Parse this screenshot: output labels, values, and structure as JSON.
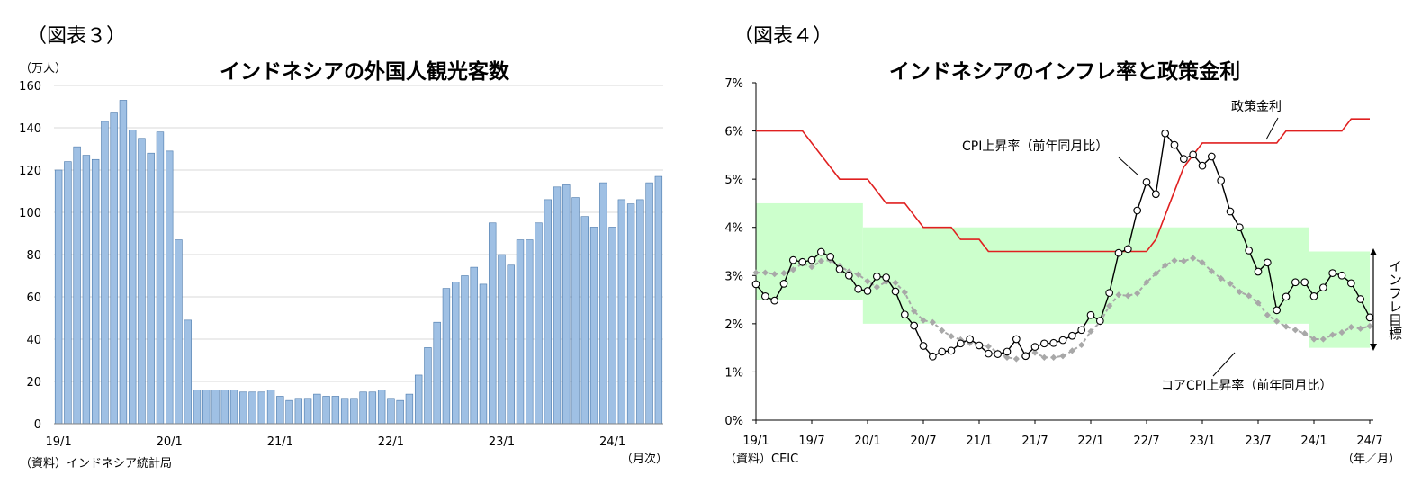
{
  "chart_data": [
    {
      "type": "bar",
      "figure_label": "（図表３）",
      "title": "インドネシアの外国人観光客数",
      "ylabel": "（万人）",
      "xlabel": "（月次）",
      "source": "（資料）インドネシア統計局",
      "ylim": [
        0,
        160
      ],
      "yticks": [
        "0",
        "20",
        "40",
        "60",
        "80",
        "100",
        "120",
        "140",
        "160"
      ],
      "xtick_labels": [
        "19/1",
        "20/1",
        "21/1",
        "22/1",
        "23/1",
        "24/1"
      ],
      "grid": true,
      "bar_color": "#9fc0e4",
      "bar_edge": "#4a78aa",
      "start": "2019-01",
      "values": [
        120,
        124,
        131,
        127,
        125,
        143,
        147,
        153,
        139,
        135,
        128,
        138,
        129,
        87,
        49,
        16,
        16,
        16,
        16,
        16,
        15,
        15,
        15,
        16,
        13,
        11,
        12,
        12,
        14,
        13,
        13,
        12,
        12,
        15,
        15,
        16,
        12,
        11,
        14,
        23,
        36,
        48,
        64,
        67,
        70,
        74,
        66,
        95,
        80,
        75,
        87,
        87,
        95,
        106,
        112,
        113,
        107,
        98,
        93,
        114,
        93,
        106,
        104,
        106,
        114,
        117
      ]
    },
    {
      "type": "line",
      "figure_label": "（図表４）",
      "title": "インドネシアのインフレ率と政策金利",
      "xlabel": "（年／月）",
      "source": "（資料）CEIC",
      "ylim": [
        0,
        7
      ],
      "yticks": [
        "0%",
        "1%",
        "2%",
        "3%",
        "4%",
        "5%",
        "6%",
        "7%"
      ],
      "xtick_labels": [
        "19/1",
        "19/7",
        "20/1",
        "20/7",
        "21/1",
        "21/7",
        "22/1",
        "22/7",
        "23/1",
        "23/7",
        "24/1",
        "24/7"
      ],
      "target_label": "インフレ目標",
      "target_color": "#ccffcc",
      "target_band": [
        {
          "from": "2019-01",
          "to": "2019-12",
          "low": 2.5,
          "high": 4.5
        },
        {
          "from": "2020-01",
          "to": "2023-12",
          "low": 2.0,
          "high": 4.0
        },
        {
          "from": "2024-01",
          "to": "2024-07",
          "low": 1.5,
          "high": 3.5
        }
      ],
      "series": [
        {
          "name": "政策金利",
          "color": "#e02020",
          "values": [
            6.0,
            6.0,
            6.0,
            6.0,
            6.0,
            6.0,
            5.75,
            5.5,
            5.25,
            5.0,
            5.0,
            5.0,
            5.0,
            4.75,
            4.5,
            4.5,
            4.5,
            4.25,
            4.0,
            4.0,
            4.0,
            4.0,
            3.75,
            3.75,
            3.75,
            3.5,
            3.5,
            3.5,
            3.5,
            3.5,
            3.5,
            3.5,
            3.5,
            3.5,
            3.5,
            3.5,
            3.5,
            3.5,
            3.5,
            3.5,
            3.5,
            3.5,
            3.5,
            3.75,
            4.25,
            4.75,
            5.25,
            5.5,
            5.75,
            5.75,
            5.75,
            5.75,
            5.75,
            5.75,
            5.75,
            5.75,
            5.75,
            6.0,
            6.0,
            6.0,
            6.0,
            6.0,
            6.0,
            6.0,
            6.25,
            6.25,
            6.25
          ]
        },
        {
          "name": "CPI上昇率（前年同月比）",
          "color": "#000000",
          "values": [
            2.82,
            2.57,
            2.48,
            2.83,
            3.32,
            3.28,
            3.32,
            3.49,
            3.39,
            3.13,
            3.0,
            2.72,
            2.68,
            2.98,
            2.96,
            2.67,
            2.19,
            1.96,
            1.54,
            1.32,
            1.42,
            1.44,
            1.59,
            1.68,
            1.55,
            1.38,
            1.37,
            1.42,
            1.68,
            1.33,
            1.52,
            1.59,
            1.6,
            1.66,
            1.75,
            1.87,
            2.18,
            2.06,
            2.64,
            3.47,
            3.55,
            4.35,
            4.94,
            4.69,
            5.95,
            5.71,
            5.42,
            5.51,
            5.28,
            5.47,
            4.97,
            4.33,
            4.0,
            3.52,
            3.08,
            3.27,
            2.28,
            2.56,
            2.86,
            2.86,
            2.57,
            2.75,
            3.05,
            3.0,
            2.84,
            2.51,
            2.13
          ]
        },
        {
          "name": "コアCPI上昇率（前年同月比）",
          "color": "#a8a8a8",
          "values": [
            3.06,
            3.06,
            3.03,
            3.05,
            3.12,
            3.25,
            3.18,
            3.3,
            3.32,
            3.2,
            3.08,
            3.02,
            2.88,
            2.76,
            2.87,
            2.85,
            2.65,
            2.26,
            2.07,
            2.03,
            1.86,
            1.74,
            1.67,
            1.6,
            1.56,
            1.53,
            1.4,
            1.3,
            1.27,
            1.35,
            1.4,
            1.3,
            1.3,
            1.33,
            1.44,
            1.56,
            1.84,
            2.03,
            2.37,
            2.6,
            2.58,
            2.63,
            2.86,
            3.04,
            3.21,
            3.31,
            3.3,
            3.36,
            3.27,
            3.09,
            2.94,
            2.83,
            2.66,
            2.58,
            2.43,
            2.18,
            2.05,
            1.94,
            1.87,
            1.8,
            1.68,
            1.68,
            1.77,
            1.82,
            1.93,
            1.9,
            1.95
          ]
        }
      ],
      "annotations": [
        "政策金利",
        "CPI上昇率（前年同月比）",
        "コアCPI上昇率（前年同月比）"
      ]
    }
  ]
}
